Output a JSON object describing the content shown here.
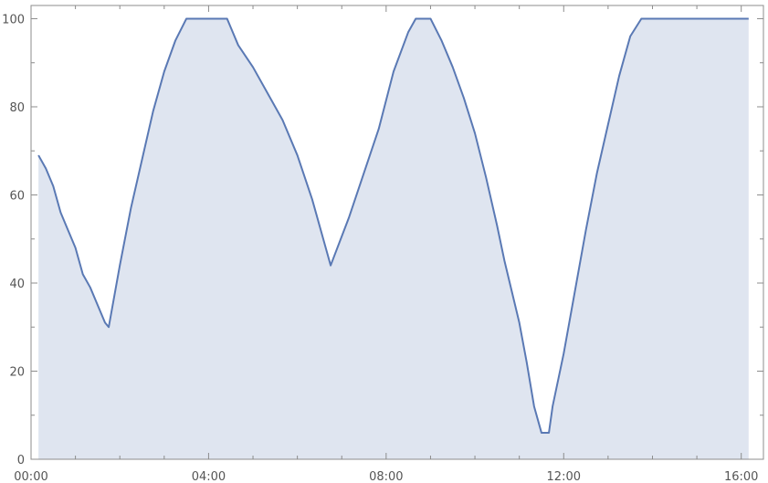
{
  "chart_data": {
    "type": "area",
    "title": "",
    "xlabel": "",
    "ylabel": "",
    "xlim": [
      "00:00",
      "16:30"
    ],
    "ylim": [
      0,
      103
    ],
    "grid": false,
    "legend": "none",
    "x_tick_labels": [
      "00:00",
      "04:00",
      "08:00",
      "12:00",
      "16:00"
    ],
    "y_tick_labels": [
      "0",
      "20",
      "40",
      "60",
      "80",
      "100"
    ],
    "series": [
      {
        "line_color": "#5a79b4",
        "fill_color": "#dfe5f0",
        "points": [
          [
            "00:10",
            69
          ],
          [
            "00:20",
            66
          ],
          [
            "00:30",
            62
          ],
          [
            "00:40",
            56
          ],
          [
            "00:50",
            52
          ],
          [
            "01:00",
            48
          ],
          [
            "01:10",
            42
          ],
          [
            "01:20",
            39
          ],
          [
            "01:30",
            35
          ],
          [
            "01:40",
            31
          ],
          [
            "01:45",
            30
          ],
          [
            "02:00",
            44
          ],
          [
            "02:15",
            57
          ],
          [
            "02:30",
            68
          ],
          [
            "02:45",
            79
          ],
          [
            "03:00",
            88
          ],
          [
            "03:15",
            95
          ],
          [
            "03:30",
            100
          ],
          [
            "04:00",
            100
          ],
          [
            "04:25",
            100
          ],
          [
            "04:40",
            94
          ],
          [
            "05:00",
            89
          ],
          [
            "05:20",
            83
          ],
          [
            "05:40",
            77
          ],
          [
            "06:00",
            69
          ],
          [
            "06:20",
            59
          ],
          [
            "06:35",
            50
          ],
          [
            "06:40",
            47
          ],
          [
            "06:45",
            44
          ],
          [
            "07:10",
            55
          ],
          [
            "07:30",
            65
          ],
          [
            "07:50",
            75
          ],
          [
            "08:10",
            88
          ],
          [
            "08:30",
            97
          ],
          [
            "08:40",
            100
          ],
          [
            "09:00",
            100
          ],
          [
            "09:15",
            95
          ],
          [
            "09:30",
            89
          ],
          [
            "09:45",
            82
          ],
          [
            "10:00",
            74
          ],
          [
            "10:15",
            64
          ],
          [
            "10:30",
            53
          ],
          [
            "10:40",
            45
          ],
          [
            "10:50",
            38
          ],
          [
            "11:00",
            31
          ],
          [
            "11:10",
            22
          ],
          [
            "11:20",
            12
          ],
          [
            "11:30",
            6
          ],
          [
            "11:40",
            6
          ],
          [
            "11:45",
            12
          ],
          [
            "12:00",
            24
          ],
          [
            "12:15",
            38
          ],
          [
            "12:30",
            52
          ],
          [
            "12:45",
            65
          ],
          [
            "13:00",
            76
          ],
          [
            "13:15",
            87
          ],
          [
            "13:30",
            96
          ],
          [
            "13:45",
            100
          ],
          [
            "14:30",
            100
          ],
          [
            "16:00",
            100
          ],
          [
            "16:10",
            100
          ]
        ]
      }
    ]
  }
}
